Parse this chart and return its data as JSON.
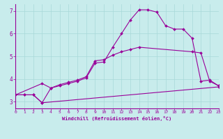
{
  "xlabel": "Windchill (Refroidissement éolien,°C)",
  "background_color": "#c8ecec",
  "grid_color": "#a8d8d8",
  "line_color": "#990099",
  "xlim": [
    0,
    23
  ],
  "ylim": [
    2.7,
    7.3
  ],
  "xticks": [
    0,
    1,
    2,
    3,
    4,
    5,
    6,
    7,
    8,
    9,
    10,
    11,
    12,
    13,
    14,
    15,
    16,
    17,
    18,
    19,
    20,
    21,
    22,
    23
  ],
  "yticks": [
    3,
    4,
    5,
    6,
    7
  ],
  "line1_x": [
    0,
    1,
    2,
    3,
    4,
    5,
    6,
    7,
    8,
    9,
    10,
    11,
    12,
    13,
    14,
    15,
    16,
    17,
    18,
    19,
    20,
    21,
    22,
    23
  ],
  "line1_y": [
    3.3,
    3.3,
    3.3,
    2.95,
    3.6,
    3.7,
    3.8,
    3.9,
    4.05,
    4.7,
    4.75,
    5.4,
    6.0,
    6.6,
    7.05,
    7.05,
    6.95,
    6.35,
    6.2,
    6.2,
    5.8,
    3.9,
    3.95,
    3.7
  ],
  "line2_x": [
    0,
    3,
    4,
    5,
    6,
    7,
    8,
    9,
    10,
    11,
    12,
    13,
    14,
    20,
    21,
    22,
    23
  ],
  "line2_y": [
    3.3,
    3.8,
    3.6,
    3.75,
    3.85,
    3.95,
    4.1,
    4.8,
    4.85,
    5.05,
    5.2,
    5.3,
    5.4,
    5.2,
    5.15,
    3.9,
    3.7
  ],
  "line3_x": [
    0,
    1,
    2,
    3,
    23
  ],
  "line3_y": [
    3.3,
    3.3,
    3.3,
    2.95,
    3.65
  ]
}
